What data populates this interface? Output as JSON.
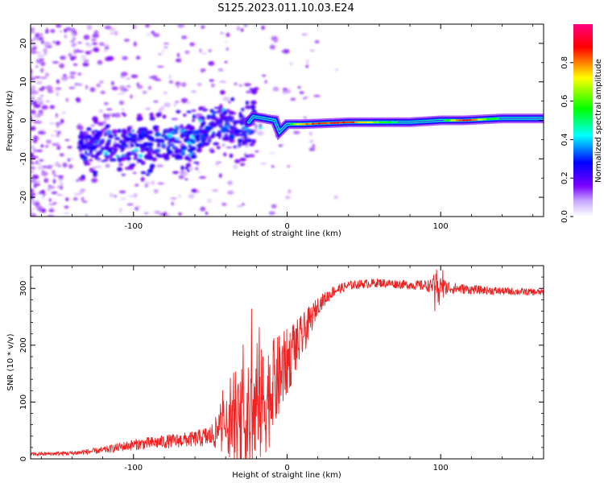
{
  "title": "S125.2023.011.10.03.E24",
  "chart_data": [
    {
      "type": "heatmap",
      "xlabel": "Height of straight line (km)",
      "ylabel": "Frequency (Hz)",
      "xlim": [
        -167,
        167
      ],
      "ylim": [
        -25,
        25
      ],
      "xticks": [
        -100,
        0,
        100
      ],
      "yticks": [
        -20,
        -10,
        0,
        10,
        20
      ],
      "xtick_labels": [
        "-100",
        "0",
        "100"
      ],
      "ytick_labels": [
        "-20",
        "-10",
        "0",
        "10",
        "20"
      ],
      "ridge": [
        {
          "x": -120,
          "f": -7,
          "a": 0.25
        },
        {
          "x": -100,
          "f": -6,
          "a": 0.3
        },
        {
          "x": -80,
          "f": -6,
          "a": 0.25
        },
        {
          "x": -60,
          "f": -5,
          "a": 0.25
        },
        {
          "x": -45,
          "f": 0,
          "a": 0.3
        },
        {
          "x": -30,
          "f": -3,
          "a": 0.3
        },
        {
          "x": -22,
          "f": 1,
          "a": 0.4
        },
        {
          "x": -8,
          "f": 0,
          "a": 0.4
        },
        {
          "x": -5,
          "f": -3,
          "a": 0.4
        },
        {
          "x": 0,
          "f": -1,
          "a": 0.45
        },
        {
          "x": 10,
          "f": -1,
          "a": 0.8
        },
        {
          "x": 40,
          "f": -0.5,
          "a": 0.85
        },
        {
          "x": 80,
          "f": -0.5,
          "a": 0.4
        },
        {
          "x": 100,
          "f": 0,
          "a": 0.45
        },
        {
          "x": 115,
          "f": 0,
          "a": 0.9
        },
        {
          "x": 140,
          "f": 0.5,
          "a": 0.45
        },
        {
          "x": 167,
          "f": 0.5,
          "a": 0.45
        }
      ],
      "colorbar": {
        "label": "Normalized spectral amplitude",
        "range": [
          0,
          1
        ],
        "ticks": [
          0.0,
          0.2,
          0.4,
          0.6,
          0.8
        ],
        "tick_labels": [
          "0.0",
          "0.2",
          "0.4",
          "0.6",
          "0.8"
        ],
        "colors": [
          "#ffffff",
          "#7a00ff",
          "#0000ff",
          "#00ffff",
          "#00ff00",
          "#ffff00",
          "#ff0000",
          "#ff0080"
        ]
      }
    },
    {
      "type": "line",
      "xlabel": "Height of straight line (km)",
      "ylabel": "SNR (10 * v/v)",
      "xlim": [
        -167,
        167
      ],
      "ylim": [
        0,
        340
      ],
      "xticks": [
        -100,
        0,
        100
      ],
      "yticks": [
        0,
        100,
        200,
        300
      ],
      "xtick_labels": [
        "-100",
        "0",
        "100"
      ],
      "ytick_labels": [
        "0",
        "100",
        "200",
        "300"
      ],
      "color": "#ee2222",
      "profile": {
        "x": [
          -167,
          -140,
          -120,
          -100,
          -80,
          -60,
          -50,
          -40,
          -30,
          -20,
          -10,
          0,
          10,
          20,
          30,
          40,
          50,
          60,
          70,
          80,
          90,
          100,
          110,
          120,
          140,
          167
        ],
        "baseline": [
          8,
          10,
          15,
          25,
          30,
          35,
          40,
          55,
          60,
          80,
          120,
          170,
          215,
          270,
          295,
          305,
          308,
          310,
          308,
          306,
          305,
          303,
          300,
          298,
          295,
          293
        ],
        "amplitude": [
          3,
          4,
          6,
          10,
          12,
          14,
          20,
          45,
          80,
          110,
          90,
          60,
          40,
          15,
          10,
          8,
          8,
          8,
          8,
          8,
          10,
          15,
          10,
          8,
          7,
          6
        ]
      }
    }
  ]
}
